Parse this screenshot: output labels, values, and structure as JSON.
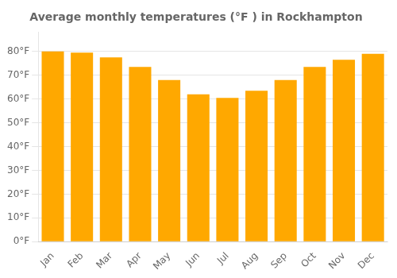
{
  "chart_data": {
    "type": "bar",
    "title": "Average monthly temperatures (°F ) in Rockhampton",
    "categories": [
      "Jan",
      "Feb",
      "Mar",
      "Apr",
      "May",
      "Jun",
      "Jul",
      "Aug",
      "Sep",
      "Oct",
      "Nov",
      "Dec"
    ],
    "values": [
      80,
      79.5,
      77.5,
      73.5,
      68,
      62,
      60.5,
      63.5,
      68,
      73.5,
      76.5,
      79
    ],
    "color": "#FFA800",
    "ylim": [
      0,
      88
    ],
    "yticks": [
      {
        "value": 0,
        "label": "0°F"
      },
      {
        "value": 10,
        "label": "10°F"
      },
      {
        "value": 20,
        "label": "20°F"
      },
      {
        "value": 30,
        "label": "30°F"
      },
      {
        "value": 40,
        "label": "40°F"
      },
      {
        "value": 50,
        "label": "50°F"
      },
      {
        "value": 60,
        "label": "60°F"
      },
      {
        "value": 70,
        "label": "70°F"
      },
      {
        "value": 80,
        "label": "80°F"
      }
    ],
    "grid": true
  }
}
